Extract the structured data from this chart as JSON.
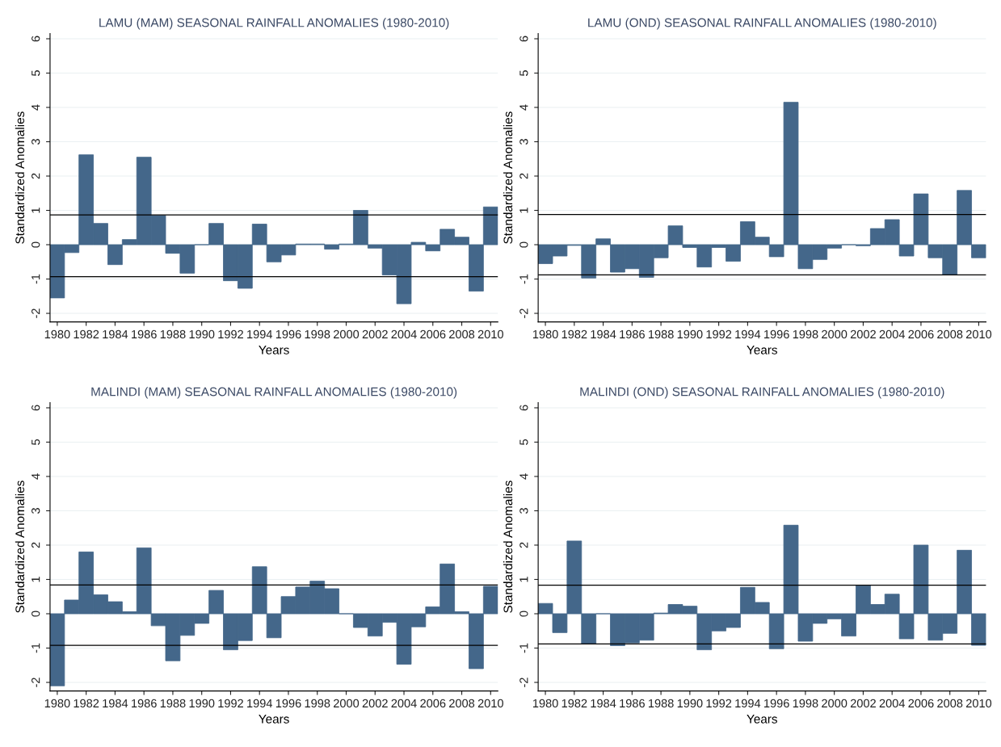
{
  "chart_data": [
    {
      "type": "bar",
      "title": "LAMU (MAM) SEASONAL RAINFALL ANOMALIES (1980-2010)",
      "xlabel": "Years",
      "ylabel": "Standardized Anomalies",
      "color": "#44678a",
      "x": [
        1980,
        1981,
        1982,
        1983,
        1984,
        1985,
        1986,
        1987,
        1988,
        1989,
        1990,
        1991,
        1992,
        1993,
        1994,
        1995,
        1996,
        1997,
        1998,
        1999,
        2000,
        2001,
        2002,
        2003,
        2004,
        2005,
        2006,
        2007,
        2008,
        2009,
        2010
      ],
      "values": [
        -1.55,
        -0.23,
        2.62,
        0.62,
        -0.58,
        0.15,
        2.55,
        0.85,
        -0.25,
        -0.83,
        0.0,
        0.62,
        -1.05,
        -1.27,
        0.6,
        -0.5,
        -0.3,
        0.02,
        0.02,
        -0.13,
        0.02,
        1.0,
        -0.1,
        -0.88,
        -1.72,
        0.07,
        -0.18,
        0.45,
        0.22,
        -1.35,
        1.1
      ],
      "xlim": [
        1979.5,
        2010.5
      ],
      "xticks": [
        1980,
        1982,
        1984,
        1986,
        1988,
        1990,
        1992,
        1994,
        1996,
        1998,
        2000,
        2002,
        2004,
        2006,
        2008,
        2010
      ],
      "ylim": [
        -2.25,
        6.15
      ],
      "yticks": [
        -2,
        -1,
        0,
        1,
        2,
        3,
        4,
        5,
        6
      ],
      "grid": "y",
      "ref_lines": [
        {
          "axis": "y",
          "value": 0.87,
          "color": "#000000"
        },
        {
          "axis": "y",
          "value": -0.93,
          "color": "#000000"
        }
      ]
    },
    {
      "type": "bar",
      "title": "LAMU (OND) SEASONAL RAINFALL ANOMALIES (1980-2010)",
      "xlabel": "Years",
      "ylabel": "Standardized Anomalies",
      "color": "#44678a",
      "x": [
        1980,
        1981,
        1982,
        1983,
        1984,
        1985,
        1986,
        1987,
        1988,
        1989,
        1990,
        1991,
        1992,
        1993,
        1994,
        1995,
        1996,
        1997,
        1998,
        1999,
        2000,
        2001,
        2002,
        2003,
        2004,
        2005,
        2006,
        2007,
        2008,
        2009,
        2010
      ],
      "values": [
        -0.55,
        -0.33,
        -0.02,
        -0.97,
        0.17,
        -0.8,
        -0.7,
        -0.95,
        -0.38,
        0.55,
        -0.08,
        -0.65,
        -0.08,
        -0.48,
        0.67,
        0.22,
        -0.35,
        4.15,
        -0.7,
        -0.43,
        -0.1,
        0.0,
        -0.03,
        0.47,
        0.73,
        -0.33,
        1.48,
        -0.38,
        -0.88,
        1.58,
        -0.38
      ],
      "xlim": [
        1979.5,
        2010.5
      ],
      "xticks": [
        1980,
        1982,
        1984,
        1986,
        1988,
        1990,
        1992,
        1994,
        1996,
        1998,
        2000,
        2002,
        2004,
        2006,
        2008,
        2010
      ],
      "ylim": [
        -2.25,
        6.15
      ],
      "yticks": [
        -2,
        -1,
        0,
        1,
        2,
        3,
        4,
        5,
        6
      ],
      "grid": "y",
      "ref_lines": [
        {
          "axis": "y",
          "value": 0.88,
          "color": "#000000"
        },
        {
          "axis": "y",
          "value": -0.88,
          "color": "#000000"
        }
      ]
    },
    {
      "type": "bar",
      "title": "MALINDI (MAM) SEASONAL RAINFALL ANOMALIES (1980-2010)",
      "xlabel": "Years",
      "ylabel": "Standardized Anomalies",
      "color": "#44678a",
      "x": [
        1980,
        1981,
        1982,
        1983,
        1984,
        1985,
        1986,
        1987,
        1988,
        1989,
        1990,
        1991,
        1992,
        1993,
        1994,
        1995,
        1996,
        1997,
        1998,
        1999,
        2000,
        2001,
        2002,
        2003,
        2004,
        2005,
        2006,
        2007,
        2008,
        2009,
        2010
      ],
      "values": [
        -2.1,
        0.4,
        1.8,
        0.55,
        0.35,
        0.06,
        1.92,
        -0.35,
        -1.37,
        -0.63,
        -0.28,
        0.68,
        -1.05,
        -0.78,
        1.37,
        -0.7,
        0.5,
        0.78,
        0.95,
        0.73,
        0.0,
        -0.4,
        -0.65,
        -0.25,
        -1.47,
        -0.38,
        0.2,
        1.45,
        0.06,
        -1.6,
        0.8
      ],
      "xlim": [
        1979.5,
        2010.5
      ],
      "xticks": [
        1980,
        1982,
        1984,
        1986,
        1988,
        1990,
        1992,
        1994,
        1996,
        1998,
        2000,
        2002,
        2004,
        2006,
        2008,
        2010
      ],
      "ylim": [
        -2.25,
        6.15
      ],
      "yticks": [
        -2,
        -1,
        0,
        1,
        2,
        3,
        4,
        5,
        6
      ],
      "grid": "y",
      "ref_lines": [
        {
          "axis": "y",
          "value": 0.84,
          "color": "#000000"
        },
        {
          "axis": "y",
          "value": -0.92,
          "color": "#000000"
        }
      ]
    },
    {
      "type": "bar",
      "title": "MALINDI (OND) SEASONAL RAINFALL ANOMALIES (1980-2010)",
      "xlabel": "Years",
      "ylabel": "Standardized Anomalies",
      "color": "#44678a",
      "x": [
        1980,
        1981,
        1982,
        1983,
        1984,
        1985,
        1986,
        1987,
        1988,
        1989,
        1990,
        1991,
        1992,
        1993,
        1994,
        1995,
        1996,
        1997,
        1998,
        1999,
        2000,
        2001,
        2002,
        2003,
        2004,
        2005,
        2006,
        2007,
        2008,
        2009,
        2010
      ],
      "values": [
        0.3,
        -0.55,
        2.12,
        -0.88,
        0.0,
        -0.93,
        -0.85,
        -0.77,
        0.02,
        0.27,
        0.22,
        -1.05,
        -0.5,
        -0.4,
        0.77,
        0.33,
        -1.02,
        2.58,
        -0.8,
        -0.28,
        -0.15,
        -0.65,
        0.82,
        0.27,
        0.57,
        -0.73,
        2.0,
        -0.77,
        -0.57,
        1.85,
        -0.92
      ],
      "xlim": [
        1979.5,
        2010.5
      ],
      "xticks": [
        1980,
        1982,
        1984,
        1986,
        1988,
        1990,
        1992,
        1994,
        1996,
        1998,
        2000,
        2002,
        2004,
        2006,
        2008,
        2010
      ],
      "ylim": [
        -2.25,
        6.15
      ],
      "yticks": [
        -2,
        -1,
        0,
        1,
        2,
        3,
        4,
        5,
        6
      ],
      "grid": "y",
      "ref_lines": [
        {
          "axis": "y",
          "value": 0.83,
          "color": "#000000"
        },
        {
          "axis": "y",
          "value": -0.88,
          "color": "#000000"
        }
      ]
    }
  ]
}
